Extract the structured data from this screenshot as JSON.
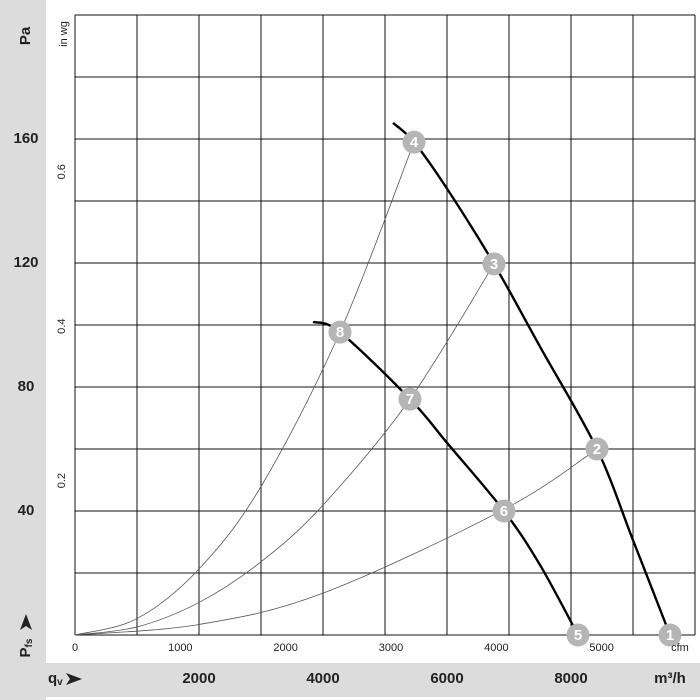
{
  "chart_data": {
    "type": "fan-curve",
    "y_unit": "Pa",
    "y2_unit": "in wg",
    "x_unit": "m³/h",
    "x2_unit": "cfm",
    "x_symbol": {
      "symbol": "q",
      "subscript": "v"
    },
    "y_symbol": {
      "symbol": "P",
      "subscript": "fs"
    },
    "xlim": [
      0,
      10000
    ],
    "ylim": [
      0,
      200
    ],
    "x2lim": [
      0,
      5886
    ],
    "y2lim": [
      0,
      0.8031
    ],
    "xticks": [
      2000,
      4000,
      6000,
      8000
    ],
    "yticks": [
      40,
      80,
      120,
      160
    ],
    "x2ticks": [
      0,
      1000,
      2000,
      3000,
      4000,
      5000
    ],
    "y2ticks": [
      0.2,
      0.4,
      0.6
    ],
    "xgrid": [
      0,
      1000,
      2000,
      3000,
      4000,
      5000,
      6000,
      7000,
      8000,
      9000,
      10000
    ],
    "ygrid": [
      0,
      20,
      40,
      60,
      80,
      100,
      120,
      140,
      160,
      180,
      200
    ],
    "fan_color": "#000000",
    "system_color": "#555555",
    "marker_color": "#b5b5b5",
    "fan_curves": [
      {
        "x": [
          5129,
          5468,
          6000,
          6758,
          7500,
          8419,
          9000,
          9597
        ],
        "values": [
          165.2,
          159,
          144,
          119.7,
          93,
          60,
          30.6,
          0
        ]
      },
      {
        "x": [
          3839,
          4274,
          5403,
          6000,
          6919,
          7500,
          8113
        ],
        "values": [
          101,
          97.7,
          76.1,
          62,
          40,
          22.6,
          0
        ]
      }
    ],
    "system_curves": [
      {
        "x": [
          0,
          1000,
          2000,
          3000,
          4274,
          5468
        ],
        "values": [
          0,
          5.3,
          21.3,
          47.9,
          97.7,
          159
        ]
      },
      {
        "x": [
          0,
          1000,
          2000,
          3000,
          4000,
          5403,
          6758
        ],
        "values": [
          0,
          2.6,
          10.5,
          23.6,
          41.9,
          76.1,
          119.7
        ]
      },
      {
        "x": [
          0,
          2000,
          4000,
          6919,
          8419
        ],
        "values": [
          0,
          3.4,
          13.5,
          40.5,
          60
        ]
      }
    ],
    "points": [
      {
        "label": "1",
        "x": 9597,
        "y": 0
      },
      {
        "label": "2",
        "x": 8419,
        "y": 60
      },
      {
        "label": "3",
        "x": 6758,
        "y": 119.7
      },
      {
        "label": "4",
        "x": 5468,
        "y": 159
      },
      {
        "label": "5",
        "x": 8113,
        "y": 0
      },
      {
        "label": "6",
        "x": 6919,
        "y": 40
      },
      {
        "label": "7",
        "x": 5403,
        "y": 76.1
      },
      {
        "label": "8",
        "x": 4274,
        "y": 97.7
      }
    ]
  }
}
